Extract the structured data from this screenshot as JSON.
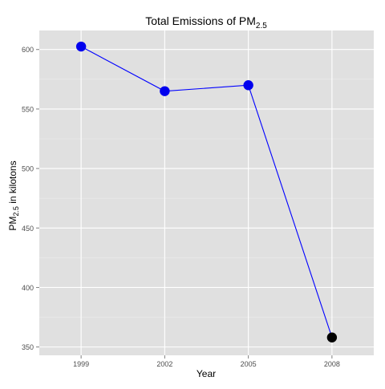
{
  "chart_data": {
    "type": "line",
    "title": "Total Emissions of PM",
    "title_subscript": "2.5",
    "xlabel": "Year",
    "ylabel": "PM",
    "ylabel_subscript": "2.5",
    "ylabel_suffix": " in kilotons",
    "categories": [
      "1999",
      "2002",
      "2005",
      "2008"
    ],
    "values": [
      602.5,
      565,
      570,
      358
    ],
    "ylim": [
      343,
      616
    ],
    "yticks": [
      350,
      400,
      450,
      500,
      550,
      600
    ],
    "grid": true,
    "colors": {
      "line": "#0000ff",
      "point_default": "#0000ee",
      "point_last": "#000000",
      "panel_bg": "#e0e0e0",
      "grid_major": "#ffffff",
      "grid_minor": "#ececec"
    }
  }
}
